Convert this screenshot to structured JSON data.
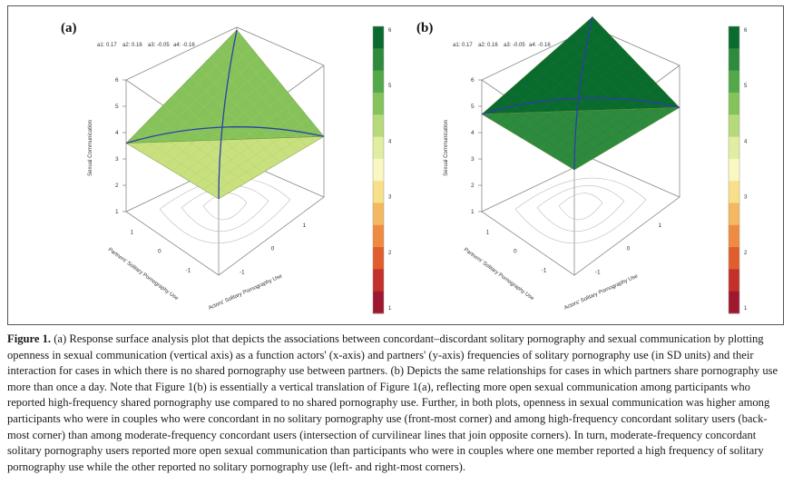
{
  "figure": {
    "panels": [
      {
        "label": "(a)",
        "coefficients": [
          "a1: 0.17",
          "a2: 0.16",
          "a3: -0.05",
          "a4: -0.16"
        ],
        "z_axis_title": "Sexual Communication",
        "z_ticks": [
          "1",
          "2",
          "3",
          "4",
          "5",
          "6"
        ],
        "x_axis_title": "Actors' Solitary Pornography Use",
        "x_ticks": [
          "-1",
          "0",
          "1"
        ],
        "y_axis_title": "Partners' Solitary Pornography Use",
        "y_ticks": [
          "1",
          "0",
          "-1"
        ],
        "colorbar_labels": [
          "6",
          "5",
          "4",
          "3",
          "2",
          "1"
        ]
      },
      {
        "label": "(b)",
        "coefficients": [
          "a1: 0.17",
          "a2: 0.16",
          "a3: -0.05",
          "a4: -0.16"
        ],
        "z_axis_title": "Sexual Communication",
        "z_ticks": [
          "1",
          "2",
          "3",
          "4",
          "5",
          "6"
        ],
        "x_axis_title": "Actors' Solitary Pornography Use",
        "x_ticks": [
          "-1",
          "0",
          "1"
        ],
        "y_axis_title": "Partners' Solitary Pornography Use",
        "y_ticks": [
          "1",
          "0",
          "-1"
        ],
        "colorbar_labels": [
          "6",
          "5",
          "4",
          "3",
          "2",
          "1"
        ]
      }
    ],
    "colorbar_colors": [
      "#0a6b2e",
      "#2e8b3e",
      "#53a84a",
      "#86c25a",
      "#b6d97a",
      "#dfeea0",
      "#fbf7c2",
      "#f8e08a",
      "#f4b860",
      "#ef8b40",
      "#e05d2e",
      "#c4302a",
      "#a01830"
    ],
    "surface_colors": {
      "a": [
        "#c9e07e",
        "#a8cf6a",
        "#86c25a"
      ],
      "b": [
        "#2e8b3e",
        "#1e7a36",
        "#0a6b2e"
      ]
    },
    "line_color": "#2b3fa8"
  },
  "caption": {
    "label": "Figure 1.",
    "text": " (a) Response surface analysis plot that depicts the associations between concordant–discordant solitary pornography and sexual communication by plotting openness in sexual communication (vertical axis) as a function actors' (x-axis) and partners' (y-axis) frequencies of solitary pornography use (in SD units) and their interaction for cases in which there is no shared pornography use between partners. (b) Depicts the same relationships for cases in which partners share pornography use more than once a day. Note that Figure 1(b) is essentially a vertical translation of Figure 1(a), reflecting more open sexual communication among participants who reported high-frequency shared pornography use compared to no shared pornography use. Further, in both plots, openness in sexual communication was higher among participants who were in couples who were concordant in no solitary pornography use (front-most corner) and among high-frequency concordant solitary users (back-most corner) than among moderate-frequency concordant users (intersection of curvilinear lines that join opposite corners). In turn, moderate-frequency concordant solitary pornography users reported more open sexual communication than participants who were in couples where one member reported a high frequency of solitary pornography use while the other reported no solitary pornography use (left- and right-most corners)."
  }
}
